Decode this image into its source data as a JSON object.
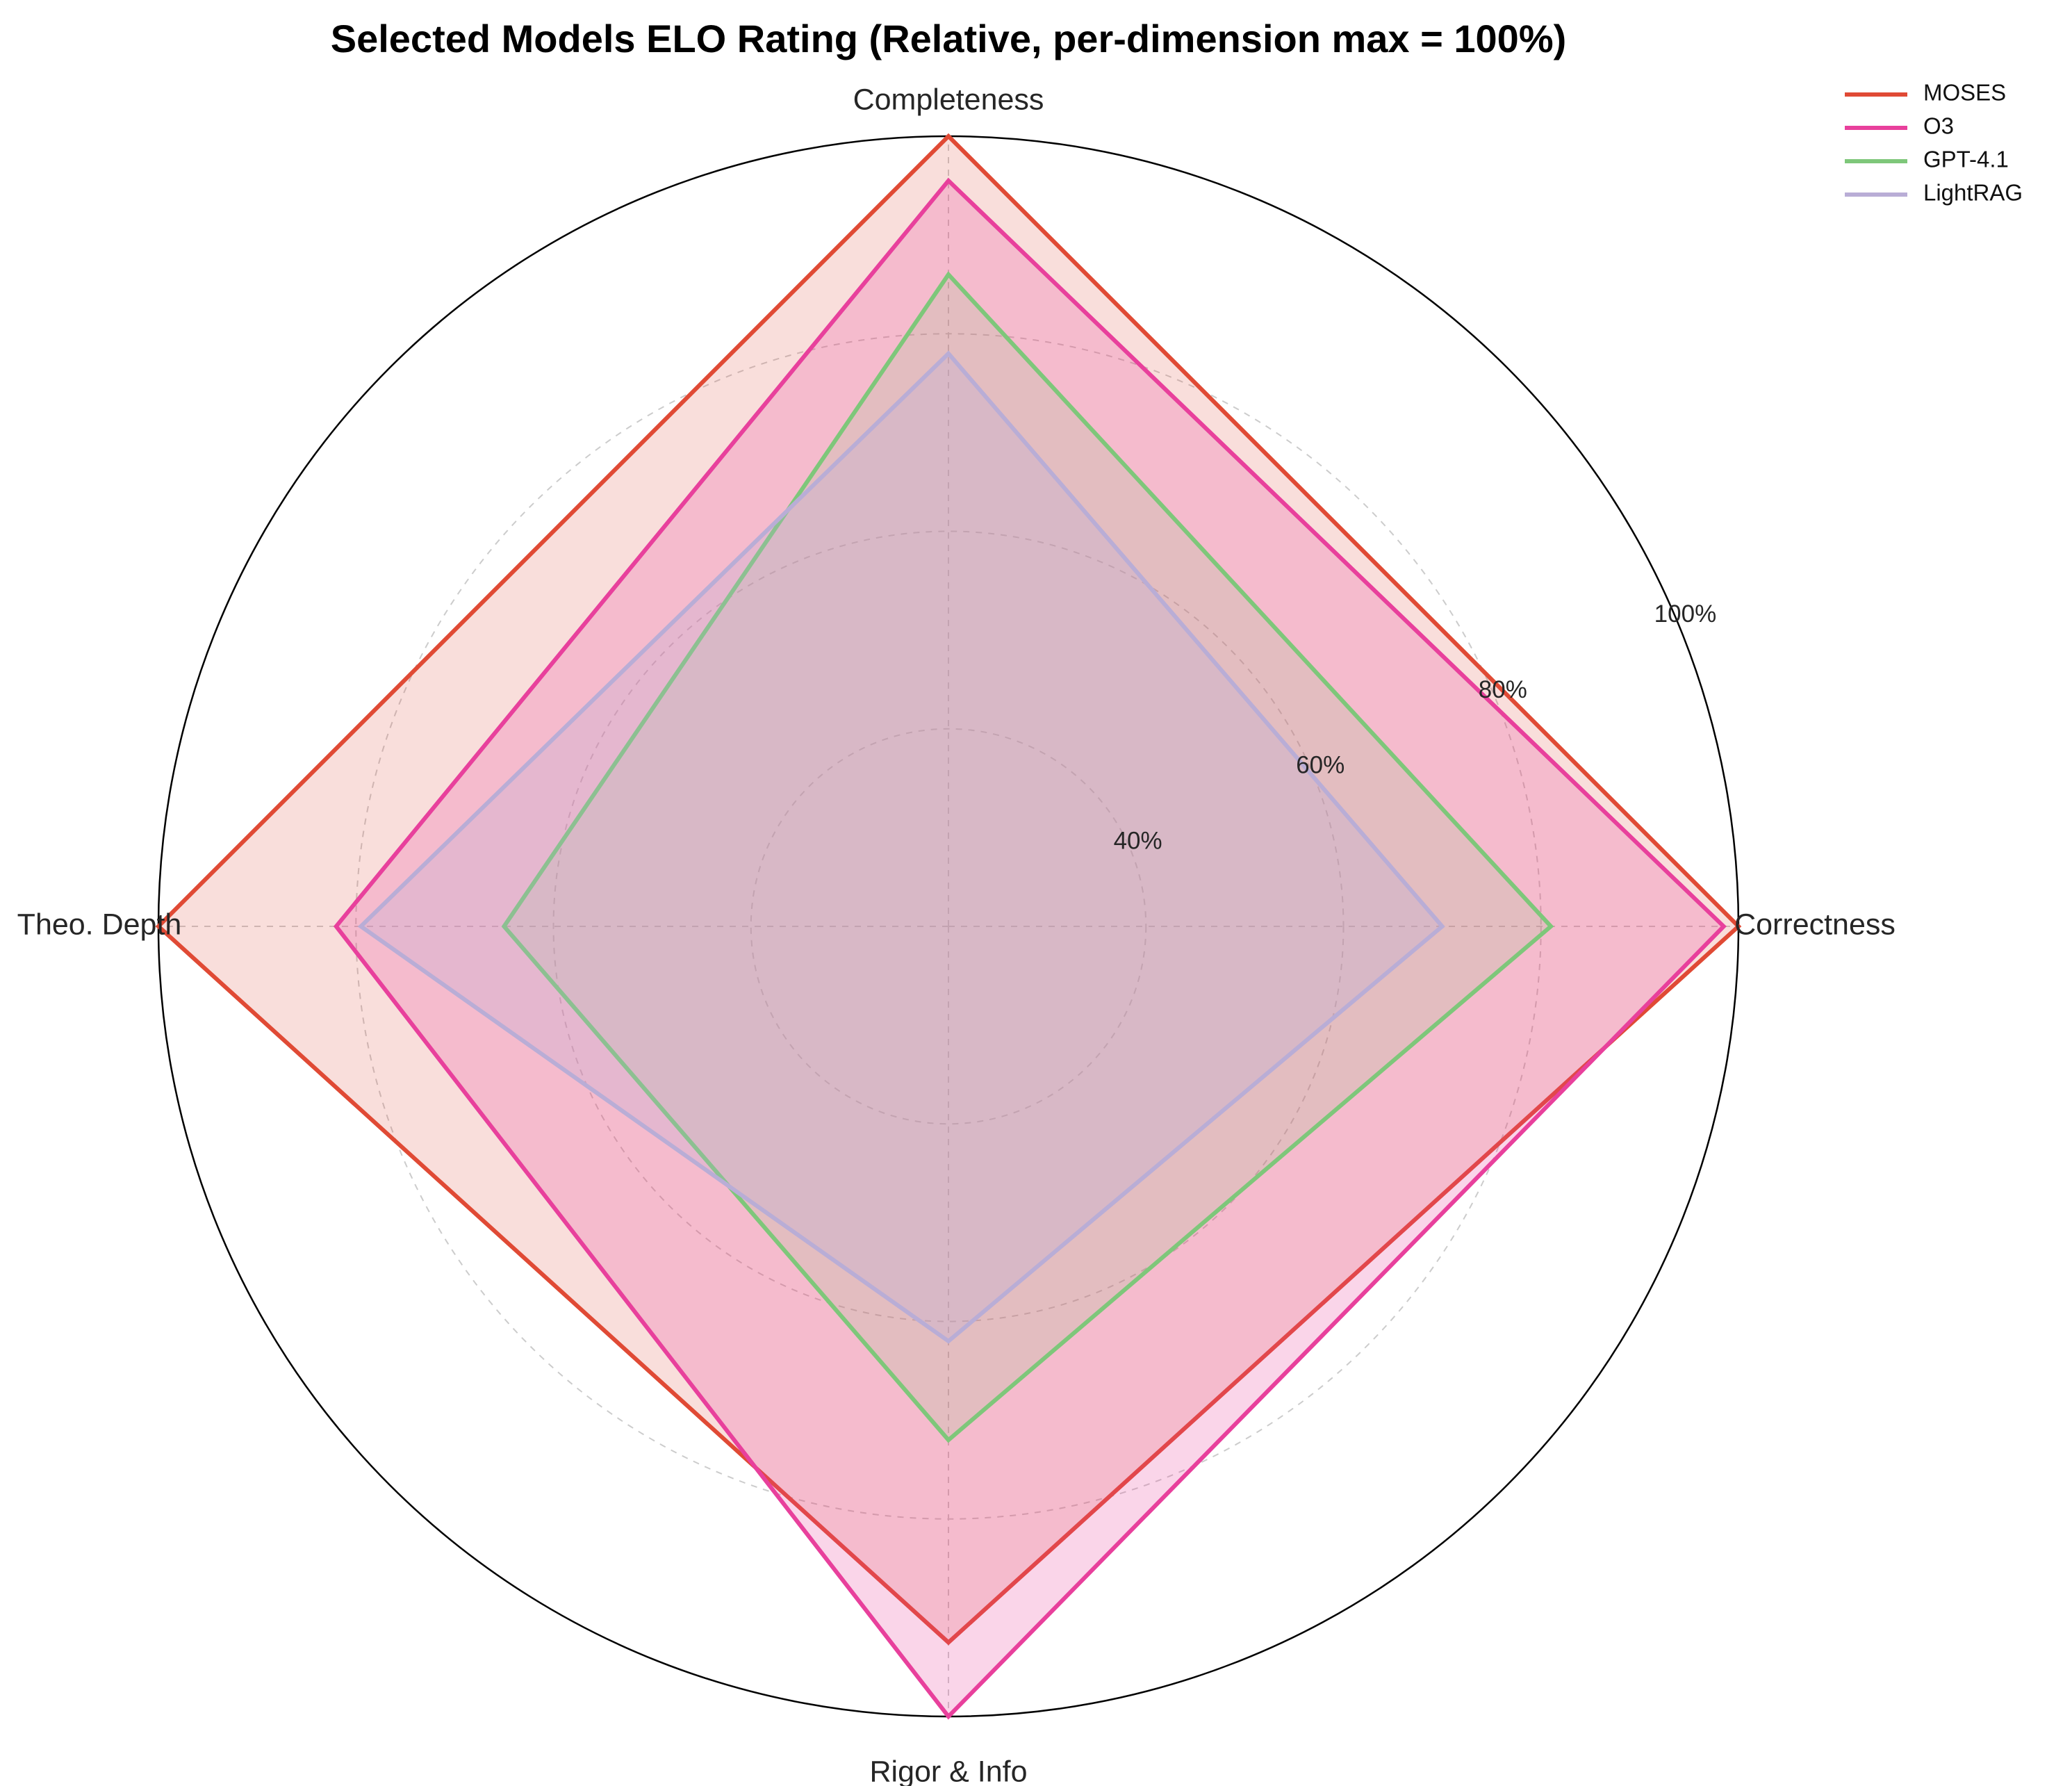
{
  "chart_data": {
    "type": "radar",
    "title": "Selected Models ELO Rating (Relative, per-dimension max = 100%)",
    "axes": [
      "Completeness",
      "Theo. Depth",
      "Rigor & Info",
      "Correctness"
    ],
    "radial_ticks": [
      40,
      60,
      80,
      100
    ],
    "radial_tick_labels": [
      "40%",
      "60%",
      "80%",
      "100%"
    ],
    "rlim": [
      20,
      100
    ],
    "grid": true,
    "legend_position": "top-right",
    "series": [
      {
        "name": "MOSES",
        "color": "#e04a35",
        "fill_opacity": 0.18,
        "values": [
          100,
          100,
          92.5,
          100
        ]
      },
      {
        "name": "O3",
        "color": "#e8409c",
        "fill_opacity": 0.22,
        "values": [
          95.5,
          82,
          100,
          98.5
        ]
      },
      {
        "name": "GPT-4.1",
        "color": "#7ec77a",
        "fill_opacity": 0.15,
        "values": [
          86,
          65,
          72,
          81
        ]
      },
      {
        "name": "LightRAG",
        "color": "#b9add6",
        "fill_opacity": 0.25,
        "values": [
          78,
          79.5,
          62,
          70
        ]
      }
    ]
  }
}
